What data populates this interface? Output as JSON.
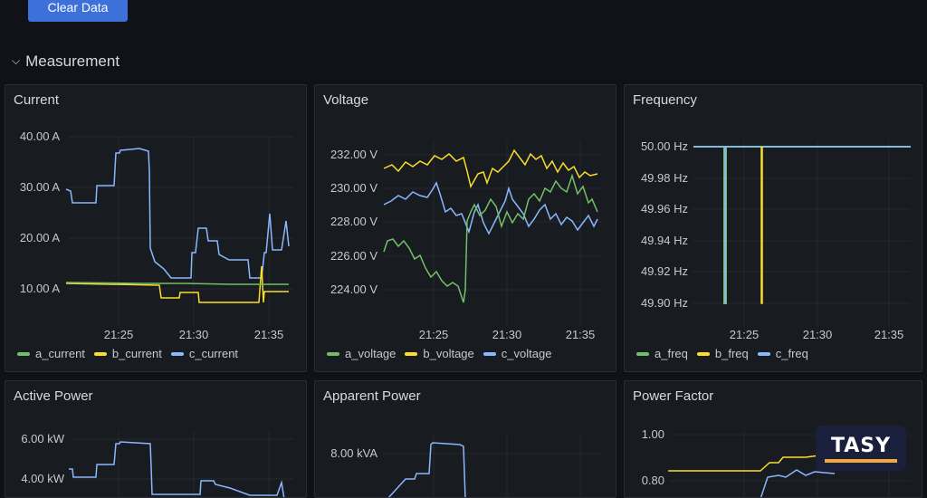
{
  "toolbar": {
    "clear_label": "Clear Data"
  },
  "row": {
    "title": "Measurement"
  },
  "colors": {
    "green": "#73bf69",
    "yellow": "#fade2a",
    "blue": "#8ab8ff"
  },
  "panels": {
    "current": {
      "title": "Current",
      "legend": [
        "a_current",
        "b_current",
        "c_current"
      ],
      "y_ticks": [
        "40.00 A",
        "30.00 A",
        "20.00 A",
        "10.00 A"
      ],
      "x_ticks": [
        "21:25",
        "21:30",
        "21:35"
      ]
    },
    "voltage": {
      "title": "Voltage",
      "legend": [
        "a_voltage",
        "b_voltage",
        "c_voltage"
      ],
      "y_ticks": [
        "232.00 V",
        "230.00 V",
        "228.00 V",
        "226.00 V",
        "224.00 V"
      ],
      "x_ticks": [
        "21:25",
        "21:30",
        "21:35"
      ]
    },
    "frequency": {
      "title": "Frequency",
      "legend": [
        "a_freq",
        "b_freq",
        "c_freq"
      ],
      "y_ticks": [
        "50.00 Hz",
        "49.98 Hz",
        "49.96 Hz",
        "49.94 Hz",
        "49.92 Hz",
        "49.90 Hz"
      ],
      "x_ticks": [
        "21:25",
        "21:30",
        "21:35"
      ]
    },
    "active_power": {
      "title": "Active Power",
      "y_ticks": [
        "6.00 kW",
        "4.00 kW"
      ]
    },
    "apparent_power": {
      "title": "Apparent Power",
      "y_ticks": [
        "8.00 kVA"
      ]
    },
    "power_factor": {
      "title": "Power Factor",
      "y_ticks": [
        "1.00",
        "0.80"
      ]
    }
  },
  "logo": {
    "text": "TASY"
  }
}
